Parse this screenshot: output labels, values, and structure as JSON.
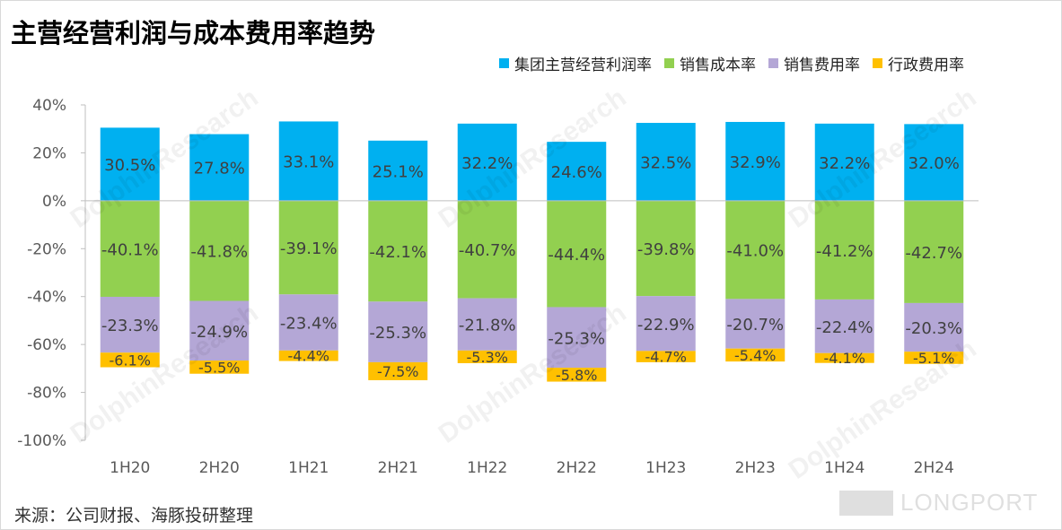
{
  "title": "主营经营利润与成本费用率趋势",
  "source": "来源：公司财报、海豚投研整理",
  "watermark_texts": [
    "海豚投研",
    "DolphinResearch"
  ],
  "logo_text": "LONGPORT",
  "colors": {
    "operating_margin": "#00B0F0",
    "cost_of_sales": "#92D050",
    "selling_expense": "#B4A7D6",
    "admin_expense": "#FFC000"
  },
  "chart_data": {
    "type": "bar",
    "stacked": true,
    "categories": [
      "1H20",
      "2H20",
      "1H21",
      "2H21",
      "1H22",
      "2H22",
      "1H23",
      "2H23",
      "1H24",
      "2H24"
    ],
    "series": [
      {
        "name": "集团主营经营利润率",
        "values": [
          30.5,
          27.8,
          33.1,
          25.1,
          32.2,
          24.6,
          32.5,
          32.9,
          32.2,
          32.0
        ],
        "labels": [
          "30.5%",
          "27.8%",
          "33.1%",
          "25.1%",
          "32.2%",
          "24.6%",
          "32.5%",
          "32.9%",
          "32.2%",
          "32.0%"
        ]
      },
      {
        "name": "销售成本率",
        "values": [
          -40.1,
          -41.8,
          -39.1,
          -42.1,
          -40.7,
          -44.4,
          -39.8,
          -41.0,
          -41.2,
          -42.7
        ],
        "labels": [
          "-40.1%",
          "-41.8%",
          "-39.1%",
          "-42.1%",
          "-40.7%",
          "-44.4%",
          "-39.8%",
          "-41.0%",
          "-41.2%",
          "-42.7%"
        ]
      },
      {
        "name": "销售费用率",
        "values": [
          -23.3,
          -24.9,
          -23.4,
          -25.3,
          -21.8,
          -25.3,
          -22.9,
          -20.7,
          -22.4,
          -20.3
        ],
        "labels": [
          "-23.3%",
          "-24.9%",
          "-23.4%",
          "-25.3%",
          "-21.8%",
          "-25.3%",
          "-22.9%",
          "-20.7%",
          "-22.4%",
          "-20.3%"
        ]
      },
      {
        "name": "行政费用率",
        "values": [
          -6.1,
          -5.5,
          -4.4,
          -7.5,
          -5.3,
          -5.8,
          -4.7,
          -5.4,
          -4.1,
          -5.1
        ],
        "labels": [
          "-6.1%",
          "-5.5%",
          "-4.4%",
          "-7.5%",
          "-5.3%",
          "-5.8%",
          "-4.7%",
          "-5.4%",
          "-4.1%",
          "-5.1%"
        ]
      }
    ],
    "yticks": [
      40,
      20,
      0,
      -20,
      -40,
      -60,
      -80,
      -100
    ],
    "ytick_labels": [
      "40%",
      "20%",
      "0%",
      "-20%",
      "-40%",
      "-60%",
      "-80%",
      "-100%"
    ],
    "ylim": [
      -100,
      40
    ],
    "xlabel": "",
    "ylabel": "",
    "grid": false,
    "legend_position": "top-right"
  }
}
